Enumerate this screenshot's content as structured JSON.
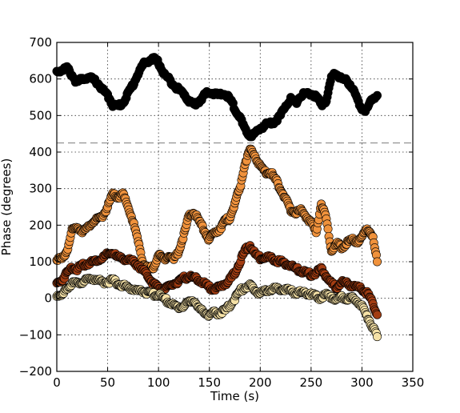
{
  "chart_data": {
    "type": "scatter",
    "xlabel": "Time (s)",
    "ylabel": "Phase (degrees)",
    "xlim": [
      0,
      350
    ],
    "ylim": [
      -200,
      700
    ],
    "xticks": [
      0,
      50,
      100,
      150,
      200,
      250,
      300,
      350
    ],
    "yticks": [
      -200,
      -100,
      0,
      100,
      200,
      300,
      400,
      500,
      600,
      700
    ],
    "grid": true,
    "reference_line": {
      "y": 425,
      "style": "dashed",
      "color": "#999999"
    },
    "series": [
      {
        "color": "#000000",
        "keypoints": [
          [
            0,
            620
          ],
          [
            5,
            625
          ],
          [
            10,
            630
          ],
          [
            15,
            610
          ],
          [
            20,
            590
          ],
          [
            25,
            600
          ],
          [
            30,
            605
          ],
          [
            35,
            600
          ],
          [
            40,
            590
          ],
          [
            45,
            570
          ],
          [
            50,
            555
          ],
          [
            55,
            530
          ],
          [
            60,
            525
          ],
          [
            65,
            535
          ],
          [
            70,
            560
          ],
          [
            75,
            585
          ],
          [
            80,
            615
          ],
          [
            85,
            640
          ],
          [
            90,
            650
          ],
          [
            95,
            655
          ],
          [
            100,
            645
          ],
          [
            105,
            615
          ],
          [
            110,
            600
          ],
          [
            115,
            585
          ],
          [
            120,
            570
          ],
          [
            125,
            560
          ],
          [
            130,
            540
          ],
          [
            135,
            530
          ],
          [
            140,
            540
          ],
          [
            145,
            555
          ],
          [
            150,
            565
          ],
          [
            155,
            560
          ],
          [
            160,
            555
          ],
          [
            165,
            560
          ],
          [
            170,
            545
          ],
          [
            175,
            520
          ],
          [
            180,
            495
          ],
          [
            185,
            460
          ],
          [
            190,
            445
          ],
          [
            195,
            450
          ],
          [
            200,
            465
          ],
          [
            205,
            475
          ],
          [
            210,
            480
          ],
          [
            215,
            485
          ],
          [
            220,
            500
          ],
          [
            225,
            530
          ],
          [
            230,
            545
          ],
          [
            235,
            535
          ],
          [
            240,
            555
          ],
          [
            245,
            560
          ],
          [
            250,
            560
          ],
          [
            255,
            550
          ],
          [
            260,
            530
          ],
          [
            265,
            540
          ],
          [
            270,
            605
          ],
          [
            275,
            615
          ],
          [
            280,
            600
          ],
          [
            285,
            595
          ],
          [
            290,
            580
          ],
          [
            295,
            545
          ],
          [
            300,
            520
          ],
          [
            305,
            515
          ],
          [
            310,
            545
          ],
          [
            315,
            555
          ]
        ]
      },
      {
        "color": "#f0923c",
        "keypoints": [
          [
            0,
            110
          ],
          [
            5,
            105
          ],
          [
            10,
            130
          ],
          [
            15,
            185
          ],
          [
            20,
            195
          ],
          [
            25,
            185
          ],
          [
            30,
            190
          ],
          [
            35,
            210
          ],
          [
            40,
            215
          ],
          [
            45,
            225
          ],
          [
            50,
            250
          ],
          [
            55,
            285
          ],
          [
            60,
            275
          ],
          [
            65,
            285
          ],
          [
            70,
            250
          ],
          [
            75,
            210
          ],
          [
            80,
            155
          ],
          [
            85,
            95
          ],
          [
            90,
            80
          ],
          [
            95,
            85
          ],
          [
            100,
            120
          ],
          [
            105,
            105
          ],
          [
            110,
            120
          ],
          [
            115,
            105
          ],
          [
            120,
            130
          ],
          [
            125,
            175
          ],
          [
            130,
            225
          ],
          [
            135,
            235
          ],
          [
            140,
            210
          ],
          [
            145,
            185
          ],
          [
            150,
            160
          ],
          [
            155,
            180
          ],
          [
            160,
            190
          ],
          [
            165,
            210
          ],
          [
            170,
            220
          ],
          [
            175,
            260
          ],
          [
            180,
            300
          ],
          [
            185,
            370
          ],
          [
            190,
            405
          ],
          [
            195,
            390
          ],
          [
            200,
            360
          ],
          [
            205,
            345
          ],
          [
            210,
            345
          ],
          [
            215,
            325
          ],
          [
            220,
            300
          ],
          [
            225,
            270
          ],
          [
            230,
            240
          ],
          [
            235,
            235
          ],
          [
            240,
            240
          ],
          [
            245,
            225
          ],
          [
            250,
            205
          ],
          [
            255,
            180
          ],
          [
            260,
            260
          ],
          [
            265,
            215
          ],
          [
            270,
            130
          ],
          [
            275,
            150
          ],
          [
            280,
            140
          ],
          [
            285,
            150
          ],
          [
            290,
            160
          ],
          [
            295,
            155
          ],
          [
            300,
            165
          ],
          [
            305,
            190
          ],
          [
            310,
            175
          ],
          [
            315,
            100
          ]
        ]
      },
      {
        "color": "#a33d12",
        "keypoints": [
          [
            0,
            40
          ],
          [
            5,
            50
          ],
          [
            10,
            70
          ],
          [
            15,
            85
          ],
          [
            20,
            80
          ],
          [
            25,
            90
          ],
          [
            30,
            95
          ],
          [
            35,
            100
          ],
          [
            40,
            105
          ],
          [
            45,
            110
          ],
          [
            50,
            120
          ],
          [
            55,
            125
          ],
          [
            60,
            110
          ],
          [
            65,
            110
          ],
          [
            70,
            105
          ],
          [
            75,
            100
          ],
          [
            80,
            90
          ],
          [
            85,
            75
          ],
          [
            90,
            60
          ],
          [
            95,
            40
          ],
          [
            100,
            30
          ],
          [
            105,
            25
          ],
          [
            110,
            30
          ],
          [
            115,
            40
          ],
          [
            120,
            45
          ],
          [
            125,
            55
          ],
          [
            130,
            60
          ],
          [
            135,
            55
          ],
          [
            140,
            50
          ],
          [
            145,
            40
          ],
          [
            150,
            30
          ],
          [
            155,
            25
          ],
          [
            160,
            30
          ],
          [
            165,
            40
          ],
          [
            170,
            50
          ],
          [
            175,
            70
          ],
          [
            180,
            100
          ],
          [
            185,
            130
          ],
          [
            190,
            145
          ],
          [
            195,
            120
          ],
          [
            200,
            110
          ],
          [
            205,
            115
          ],
          [
            210,
            110
          ],
          [
            215,
            105
          ],
          [
            220,
            100
          ],
          [
            225,
            95
          ],
          [
            230,
            90
          ],
          [
            235,
            80
          ],
          [
            240,
            75
          ],
          [
            245,
            70
          ],
          [
            250,
            65
          ],
          [
            255,
            70
          ],
          [
            260,
            80
          ],
          [
            265,
            60
          ],
          [
            270,
            40
          ],
          [
            275,
            30
          ],
          [
            280,
            45
          ],
          [
            285,
            40
          ],
          [
            290,
            35
          ],
          [
            295,
            30
          ],
          [
            300,
            25
          ],
          [
            305,
            15
          ],
          [
            310,
            -10
          ],
          [
            315,
            -45
          ]
        ]
      },
      {
        "color": "#f5e1a6",
        "keypoints": [
          [
            0,
            10
          ],
          [
            5,
            5
          ],
          [
            10,
            30
          ],
          [
            15,
            40
          ],
          [
            20,
            40
          ],
          [
            25,
            45
          ],
          [
            30,
            50
          ],
          [
            35,
            55
          ],
          [
            40,
            50
          ],
          [
            45,
            45
          ],
          [
            50,
            45
          ],
          [
            55,
            50
          ],
          [
            60,
            40
          ],
          [
            65,
            35
          ],
          [
            70,
            30
          ],
          [
            75,
            25
          ],
          [
            80,
            20
          ],
          [
            85,
            20
          ],
          [
            90,
            15
          ],
          [
            95,
            10
          ],
          [
            100,
            10
          ],
          [
            105,
            0
          ],
          [
            110,
            -10
          ],
          [
            115,
            -20
          ],
          [
            120,
            -25
          ],
          [
            125,
            -20
          ],
          [
            130,
            -10
          ],
          [
            135,
            -5
          ],
          [
            140,
            -30
          ],
          [
            145,
            -40
          ],
          [
            150,
            -45
          ],
          [
            155,
            -40
          ],
          [
            160,
            -40
          ],
          [
            165,
            -35
          ],
          [
            170,
            -20
          ],
          [
            175,
            0
          ],
          [
            180,
            20
          ],
          [
            185,
            30
          ],
          [
            190,
            35
          ],
          [
            195,
            20
          ],
          [
            200,
            15
          ],
          [
            205,
            20
          ],
          [
            210,
            25
          ],
          [
            215,
            25
          ],
          [
            220,
            25
          ],
          [
            225,
            25
          ],
          [
            230,
            20
          ],
          [
            235,
            15
          ],
          [
            240,
            15
          ],
          [
            245,
            15
          ],
          [
            250,
            10
          ],
          [
            255,
            5
          ],
          [
            260,
            0
          ],
          [
            265,
            10
          ],
          [
            270,
            5
          ],
          [
            275,
            -5
          ],
          [
            280,
            5
          ],
          [
            285,
            0
          ],
          [
            290,
            0
          ],
          [
            295,
            -5
          ],
          [
            300,
            -20
          ],
          [
            305,
            -50
          ],
          [
            310,
            -75
          ],
          [
            315,
            -105
          ]
        ]
      }
    ]
  }
}
